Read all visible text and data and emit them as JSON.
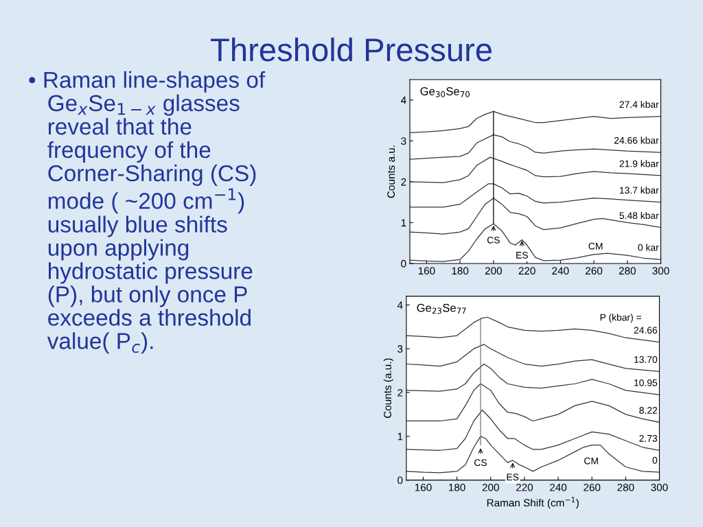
{
  "chart_data": [
    {
      "type": "other",
      "title": "Threshold Pressure",
      "annotations": [
        "• Raman line-shapes of\n   Ge$_{x}$Se$_{1−x}$ glasses\n   reveal that the\n   frequency of the\n   Corner-Sharing (CS)\n   mode ( ~200 cm$^{−1}$)\n   usually blue shifts\n   upon applying\n   hydrostatic pressure\n   (P), but only once P\n   exceeds a threshold\n   value( P$_{c}$)."
      ]
    },
    {
      "type": "line",
      "title": "Ge$_{30}$Se$_{70}$",
      "ylabel": "Counts a.u.",
      "xlim": [
        150,
        300
      ],
      "ylim": [
        0,
        4.5
      ],
      "xticks": [
        160,
        180,
        200,
        220,
        240,
        260,
        280,
        300
      ],
      "yticks": [
        0,
        1,
        2,
        3,
        4
      ],
      "grid": false,
      "legend": false,
      "annotations": [
        {
          "text": "CS",
          "x": 200,
          "y": 0.95
        },
        {
          "text": "ES",
          "x": 217,
          "y": 0.58
        },
        "CM"
      ],
      "series": [
        {
          "name": "0 kar",
          "color": "#333333",
          "x": [
            150,
            160,
            170,
            180,
            185,
            190,
            195,
            200,
            205,
            210,
            213,
            217,
            220,
            225,
            230,
            240,
            250,
            260,
            268,
            280,
            290,
            300
          ],
          "values": [
            0.08,
            0.06,
            0.05,
            0.1,
            0.3,
            0.6,
            0.85,
            0.97,
            0.8,
            0.5,
            0.45,
            0.58,
            0.45,
            0.15,
            0.07,
            0.08,
            0.14,
            0.22,
            0.25,
            0.2,
            0.13,
            0.1
          ]
        },
        {
          "name": "5.48 kbar",
          "color": "#333333",
          "x": [
            150,
            160,
            170,
            180,
            185,
            190,
            195,
            200,
            205,
            210,
            215,
            220,
            225,
            230,
            240,
            250,
            260,
            265,
            280,
            290,
            300
          ],
          "values": [
            0.77,
            0.75,
            0.72,
            0.77,
            0.85,
            1.15,
            1.45,
            1.6,
            1.45,
            1.25,
            1.22,
            1.15,
            0.92,
            0.83,
            0.87,
            0.98,
            1.08,
            1.1,
            1.0,
            0.95,
            0.88
          ]
        },
        {
          "name": "13.7 kbar",
          "color": "#333333",
          "x": [
            150,
            170,
            180,
            190,
            197,
            200,
            205,
            210,
            215,
            220,
            225,
            230,
            240,
            250,
            260,
            270,
            280,
            300
          ],
          "values": [
            1.38,
            1.38,
            1.45,
            1.75,
            1.95,
            1.95,
            1.85,
            1.7,
            1.72,
            1.65,
            1.52,
            1.48,
            1.5,
            1.55,
            1.6,
            1.58,
            1.55,
            1.5
          ]
        },
        {
          "name": "21.9 kbar",
          "color": "#333333",
          "x": [
            150,
            170,
            180,
            185,
            190,
            198,
            205,
            210,
            215,
            220,
            225,
            230,
            240,
            250,
            260,
            270,
            280,
            300
          ],
          "values": [
            2.0,
            1.98,
            2.05,
            2.15,
            2.4,
            2.6,
            2.5,
            2.42,
            2.35,
            2.28,
            2.15,
            2.12,
            2.13,
            2.2,
            2.25,
            2.22,
            2.2,
            2.15
          ]
        },
        {
          "name": "24.66 kbar",
          "color": "#333333",
          "x": [
            150,
            170,
            180,
            185,
            190,
            200,
            205,
            210,
            215,
            220,
            225,
            230,
            240,
            250,
            260,
            280,
            300
          ],
          "values": [
            2.55,
            2.6,
            2.62,
            2.7,
            2.95,
            3.15,
            3.1,
            2.98,
            2.93,
            2.85,
            2.72,
            2.7,
            2.75,
            2.78,
            2.8,
            2.75,
            2.72
          ]
        },
        {
          "name": "27.4 kbar",
          "color": "#333333",
          "x": [
            150,
            160,
            170,
            180,
            185,
            190,
            195,
            200,
            205,
            210,
            215,
            220,
            225,
            230,
            240,
            250,
            260,
            270,
            280,
            300
          ],
          "values": [
            3.2,
            3.22,
            3.25,
            3.3,
            3.35,
            3.55,
            3.65,
            3.72,
            3.65,
            3.6,
            3.55,
            3.5,
            3.45,
            3.45,
            3.5,
            3.55,
            3.6,
            3.55,
            3.57,
            3.6
          ]
        },
        {
          "color": "#000000",
          "x": [
            200,
            200
          ],
          "values": [
            0.97,
            3.72
          ]
        }
      ]
    },
    {
      "type": "line",
      "title": "Ge$_{23}$Se$_{77}$",
      "xlabel": "Raman Shift (cm$^{−1}$)",
      "ylabel": "Counts (a.u.)",
      "xlim": [
        150,
        300
      ],
      "ylim": [
        0,
        4.2
      ],
      "xticks": [
        160,
        180,
        200,
        220,
        240,
        260,
        280,
        300
      ],
      "yticks": [
        0,
        1,
        2,
        3,
        4
      ],
      "grid": false,
      "legend": false,
      "annotations": [
        "P (kbar) =",
        {
          "text": "CS",
          "x": 194,
          "y": 0.75
        },
        {
          "text": "ES",
          "x": 213,
          "y": 0.42
        },
        "CM"
      ],
      "series": [
        {
          "name": "0",
          "color": "#333333",
          "x": [
            150,
            160,
            170,
            180,
            185,
            190,
            194,
            197,
            200,
            205,
            210,
            213,
            217,
            220,
            225,
            230,
            240,
            250,
            255,
            260,
            265,
            270,
            280,
            290,
            300
          ],
          "values": [
            0.2,
            0.18,
            0.17,
            0.2,
            0.35,
            0.75,
            1.0,
            0.95,
            0.8,
            0.6,
            0.4,
            0.45,
            0.35,
            0.3,
            0.2,
            0.3,
            0.45,
            0.65,
            0.75,
            0.8,
            0.8,
            0.6,
            0.3,
            0.2,
            0.18
          ]
        },
        {
          "name": "2.73",
          "color": "#333333",
          "x": [
            150,
            170,
            180,
            185,
            190,
            195,
            200,
            205,
            210,
            214,
            220,
            225,
            230,
            240,
            250,
            260,
            270,
            280,
            290,
            300
          ],
          "values": [
            0.7,
            0.68,
            0.72,
            0.95,
            1.35,
            1.6,
            1.4,
            1.15,
            0.95,
            0.95,
            0.8,
            0.7,
            0.7,
            0.8,
            0.95,
            1.1,
            1.05,
            0.9,
            0.75,
            0.68
          ]
        },
        {
          "name": "8.22",
          "color": "#333333",
          "x": [
            150,
            170,
            180,
            185,
            190,
            194,
            200,
            205,
            210,
            215,
            220,
            225,
            230,
            240,
            250,
            260,
            270,
            280,
            290,
            300
          ],
          "values": [
            1.35,
            1.35,
            1.4,
            1.7,
            2.05,
            2.2,
            2.05,
            1.75,
            1.55,
            1.52,
            1.45,
            1.35,
            1.4,
            1.5,
            1.7,
            1.8,
            1.7,
            1.5,
            1.4,
            1.32
          ]
        },
        {
          "name": "10.95",
          "color": "#333333",
          "x": [
            150,
            170,
            180,
            185,
            190,
            196,
            200,
            205,
            210,
            220,
            230,
            240,
            250,
            260,
            270,
            280,
            300
          ],
          "values": [
            2.05,
            2.03,
            2.08,
            2.2,
            2.45,
            2.65,
            2.55,
            2.35,
            2.2,
            2.12,
            2.1,
            2.15,
            2.2,
            2.3,
            2.2,
            2.05,
            1.95
          ]
        },
        {
          "name": "13.70",
          "color": "#333333",
          "x": [
            150,
            160,
            170,
            180,
            185,
            190,
            196,
            200,
            210,
            220,
            230,
            240,
            250,
            260,
            270,
            280,
            300
          ],
          "values": [
            2.65,
            2.63,
            2.6,
            2.7,
            2.85,
            3.0,
            3.1,
            3.0,
            2.8,
            2.65,
            2.6,
            2.65,
            2.72,
            2.75,
            2.65,
            2.55,
            2.48
          ]
        },
        {
          "name": "24.66",
          "color": "#333333",
          "x": [
            150,
            160,
            170,
            180,
            185,
            190,
            195,
            198,
            205,
            210,
            220,
            230,
            240,
            250,
            260,
            270,
            280,
            290,
            300
          ],
          "values": [
            3.3,
            3.28,
            3.25,
            3.3,
            3.45,
            3.6,
            3.7,
            3.72,
            3.6,
            3.5,
            3.42,
            3.4,
            3.42,
            3.45,
            3.42,
            3.35,
            3.25,
            3.2,
            3.15
          ]
        },
        {
          "color": "#777777",
          "x": [
            194,
            194
          ],
          "values": [
            0.8,
            3.7
          ]
        }
      ]
    }
  ]
}
